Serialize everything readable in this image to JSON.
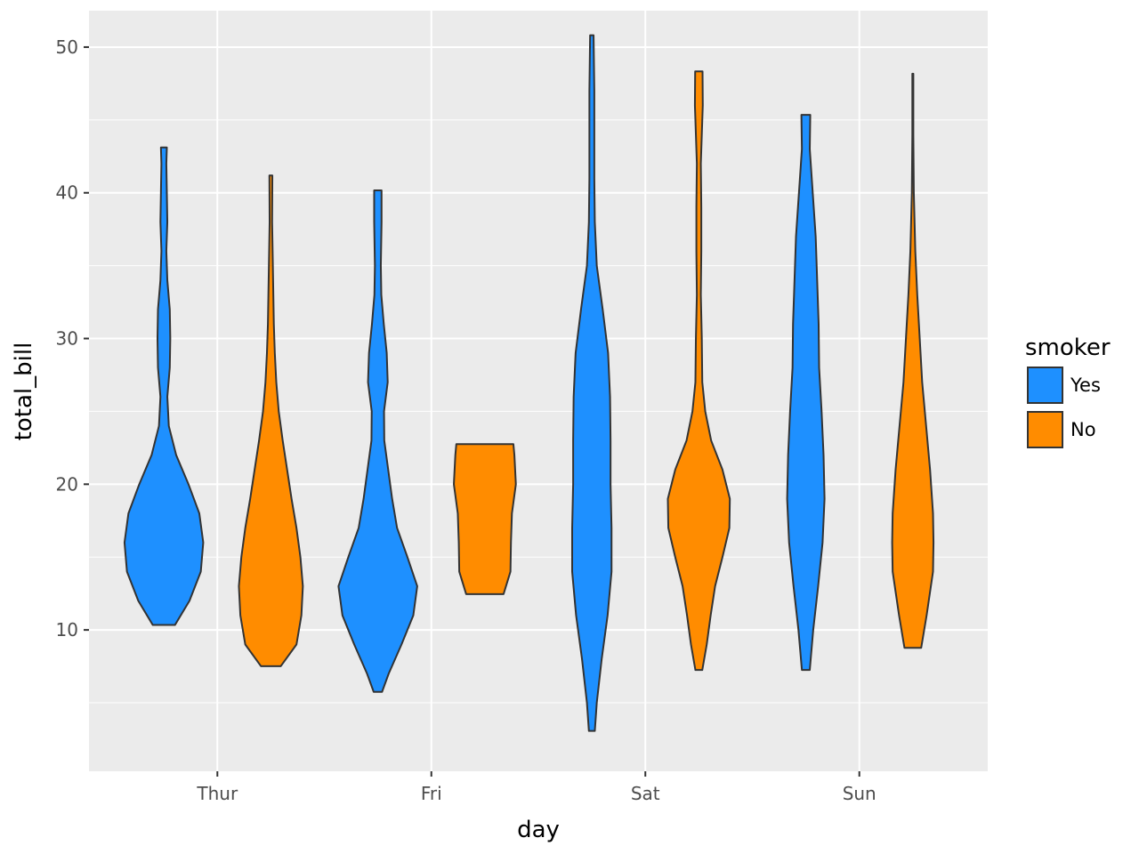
{
  "chart_data": {
    "type": "violin",
    "xlabel": "day",
    "ylabel": "total_bill",
    "categories": [
      "Thur",
      "Fri",
      "Sat",
      "Sun"
    ],
    "ylim": [
      0.3,
      52.5
    ],
    "yticks": [
      10,
      20,
      30,
      40,
      50
    ],
    "grid": true,
    "legend": {
      "title": "smoker",
      "position": "right",
      "entries": [
        {
          "label": "Yes",
          "color": "#1e90ff"
        },
        {
          "label": "No",
          "color": "#ff8c00"
        }
      ]
    },
    "series": [
      {
        "name": "Yes",
        "color": "#1e90ff",
        "violins": [
          {
            "category": "Thur",
            "profile": [
              [
                10.34,
                0.225
              ],
              [
                12,
                0.52
              ],
              [
                14,
                0.75
              ],
              [
                16,
                0.8
              ],
              [
                18,
                0.72
              ],
              [
                20,
                0.5
              ],
              [
                22,
                0.25
              ],
              [
                24,
                0.1
              ],
              [
                26,
                0.07
              ],
              [
                28,
                0.12
              ],
              [
                30,
                0.13
              ],
              [
                32,
                0.12
              ],
              [
                34,
                0.07
              ],
              [
                36,
                0.05
              ],
              [
                38,
                0.07
              ],
              [
                40,
                0.06
              ],
              [
                42,
                0.05
              ],
              [
                43.11,
                0.06
              ]
            ]
          },
          {
            "category": "Fri",
            "profile": [
              [
                5.75,
                0.085
              ],
              [
                7,
                0.22
              ],
              [
                9,
                0.48
              ],
              [
                11,
                0.72
              ],
              [
                13,
                0.8
              ],
              [
                15,
                0.6
              ],
              [
                17,
                0.39
              ],
              [
                19,
                0.29
              ],
              [
                21,
                0.21
              ],
              [
                23,
                0.13
              ],
              [
                25,
                0.125
              ],
              [
                27,
                0.2
              ],
              [
                29,
                0.18
              ],
              [
                31,
                0.12
              ],
              [
                33,
                0.07
              ],
              [
                35,
                0.06
              ],
              [
                38,
                0.075
              ],
              [
                40.17,
                0.075
              ]
            ]
          },
          {
            "category": "Sat",
            "profile": [
              [
                3.07,
                0.06
              ],
              [
                5,
                0.1
              ],
              [
                8,
                0.2
              ],
              [
                11,
                0.32
              ],
              [
                14,
                0.4
              ],
              [
                17,
                0.4
              ],
              [
                20,
                0.38
              ],
              [
                23,
                0.38
              ],
              [
                26,
                0.37
              ],
              [
                29,
                0.33
              ],
              [
                32,
                0.22
              ],
              [
                35,
                0.1
              ],
              [
                38,
                0.06
              ],
              [
                41,
                0.05
              ],
              [
                44,
                0.05
              ],
              [
                47,
                0.05
              ],
              [
                50.81,
                0.035
              ]
            ]
          },
          {
            "category": "Sun",
            "profile": [
              [
                7.25,
                0.08
              ],
              [
                10,
                0.15
              ],
              [
                13,
                0.25
              ],
              [
                16,
                0.34
              ],
              [
                19,
                0.38
              ],
              [
                22,
                0.36
              ],
              [
                25,
                0.32
              ],
              [
                28,
                0.27
              ],
              [
                31,
                0.26
              ],
              [
                34,
                0.23
              ],
              [
                37,
                0.2
              ],
              [
                40,
                0.14
              ],
              [
                43,
                0.08
              ],
              [
                45.35,
                0.09
              ]
            ]
          }
        ]
      },
      {
        "name": "No",
        "color": "#ff8c00",
        "violins": [
          {
            "category": "Thur",
            "profile": [
              [
                7.51,
                0.2
              ],
              [
                9,
                0.52
              ],
              [
                11,
                0.62
              ],
              [
                13,
                0.65
              ],
              [
                15,
                0.6
              ],
              [
                17,
                0.52
              ],
              [
                19,
                0.42
              ],
              [
                21,
                0.33
              ],
              [
                23,
                0.24
              ],
              [
                25,
                0.16
              ],
              [
                27,
                0.11
              ],
              [
                29,
                0.08
              ],
              [
                31,
                0.06
              ],
              [
                33,
                0.05
              ],
              [
                35,
                0.04
              ],
              [
                38,
                0.025
              ],
              [
                41.19,
                0.03
              ]
            ]
          },
          {
            "category": "Fri",
            "profile": [
              [
                12.46,
                0.38
              ],
              [
                14,
                0.52
              ],
              [
                16,
                0.53
              ],
              [
                18,
                0.55
              ],
              [
                20,
                0.63
              ],
              [
                22,
                0.6
              ],
              [
                22.75,
                0.58
              ]
            ]
          },
          {
            "category": "Sat",
            "profile": [
              [
                7.25,
                0.07
              ],
              [
                9,
                0.16
              ],
              [
                11,
                0.24
              ],
              [
                13,
                0.33
              ],
              [
                15,
                0.48
              ],
              [
                17,
                0.62
              ],
              [
                19,
                0.63
              ],
              [
                21,
                0.48
              ],
              [
                23,
                0.25
              ],
              [
                25,
                0.13
              ],
              [
                27,
                0.07
              ],
              [
                30,
                0.06
              ],
              [
                33,
                0.04
              ],
              [
                36,
                0.05
              ],
              [
                39,
                0.05
              ],
              [
                42,
                0.04
              ],
              [
                44,
                0.06
              ],
              [
                46,
                0.08
              ],
              [
                48.33,
                0.075
              ]
            ]
          },
          {
            "category": "Sun",
            "profile": [
              [
                8.77,
                0.17
              ],
              [
                11,
                0.28
              ],
              [
                14,
                0.41
              ],
              [
                16,
                0.42
              ],
              [
                18,
                0.41
              ],
              [
                21,
                0.35
              ],
              [
                24,
                0.27
              ],
              [
                27,
                0.19
              ],
              [
                30,
                0.14
              ],
              [
                33,
                0.09
              ],
              [
                36,
                0.05
              ],
              [
                40,
                0.02
              ],
              [
                44,
                0.01
              ],
              [
                48.17,
                0.01
              ]
            ]
          }
        ]
      }
    ]
  }
}
